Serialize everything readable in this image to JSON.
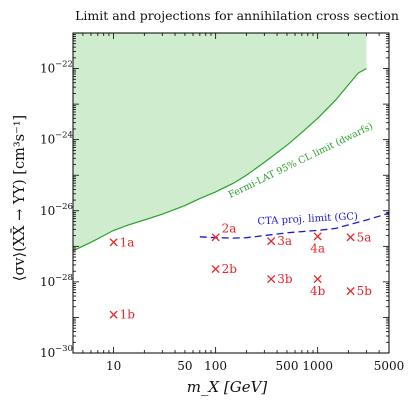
{
  "chart_data": {
    "type": "scatter",
    "title": "Limit and projections for annihilation cross section",
    "xlabel": "m_X [GeV]",
    "ylabel": "⟨σv⟩(XX̄ → YY) [cm³s⁻¹]",
    "x_scale": "log",
    "y_scale": "log",
    "xlim": [
      4,
      5000
    ],
    "ylim": [
      1e-30,
      1e-21
    ],
    "x_ticks": [
      {
        "value": 10,
        "label": "10"
      },
      {
        "value": 50,
        "label": "50"
      },
      {
        "value": 100,
        "label": "100"
      },
      {
        "value": 500,
        "label": "500"
      },
      {
        "value": 1000,
        "label": "1000"
      },
      {
        "value": 5000,
        "label": "5000"
      }
    ],
    "y_ticks": [
      {
        "value": 1e-30,
        "label": "10",
        "exp": "−30"
      },
      {
        "value": 1e-28,
        "label": "10",
        "exp": "−28"
      },
      {
        "value": 1e-26,
        "label": "10",
        "exp": "−26"
      },
      {
        "value": 1e-24,
        "label": "10",
        "exp": "−24"
      },
      {
        "value": 1e-22,
        "label": "10",
        "exp": "−22"
      }
    ],
    "fermi": {
      "label": "Fermi-LAT 95% CL limit (dwarfs)",
      "color": "#2ca02c",
      "fill": "#cfeccf",
      "x": [
        4,
        6,
        8,
        10,
        14,
        20,
        30,
        50,
        70,
        100,
        150,
        200,
        300,
        500,
        700,
        1000,
        1500,
        2000,
        2500,
        3000
      ],
      "y": [
        7.5e-28,
        1.3e-27,
        2e-27,
        2.8e-27,
        4e-27,
        5.5e-27,
        8e-27,
        1.4e-26,
        2.2e-26,
        3.4e-26,
        6e-26,
        1e-25,
        2.3e-25,
        7e-25,
        1.6e-24,
        4e-24,
        1.3e-23,
        3.5e-23,
        7.5e-23,
        1e-22
      ]
    },
    "cta": {
      "label": "CTA proj. limit (GC)",
      "color": "#1a1acc",
      "x": [
        70,
        100,
        150,
        200,
        300,
        500,
        700,
        1000,
        1500,
        2000,
        3000,
        5000
      ],
      "y": [
        1.85e-27,
        1.75e-27,
        1.7e-27,
        1.75e-27,
        2e-27,
        2.4e-27,
        2.6e-27,
        2.8e-27,
        3.2e-27,
        4e-27,
        5.5e-27,
        8.5e-27
      ]
    },
    "points": [
      {
        "label": "1a",
        "x": 10,
        "y": 1.3e-27
      },
      {
        "label": "1b",
        "x": 10,
        "y": 1.2e-29
      },
      {
        "label": "2a",
        "x": 100,
        "y": 1.8e-27
      },
      {
        "label": "2b",
        "x": 100,
        "y": 2.3e-28
      },
      {
        "label": "3a",
        "x": 350,
        "y": 1.4e-27
      },
      {
        "label": "3b",
        "x": 350,
        "y": 1.2e-28
      },
      {
        "label": "4a",
        "x": 1000,
        "y": 1.9e-27
      },
      {
        "label": "4b",
        "x": 1000,
        "y": 1.2e-28
      },
      {
        "label": "5a",
        "x": 2100,
        "y": 1.8e-27
      },
      {
        "label": "5b",
        "x": 2100,
        "y": 5.5e-29
      }
    ],
    "marker_color": "#e8262b"
  }
}
